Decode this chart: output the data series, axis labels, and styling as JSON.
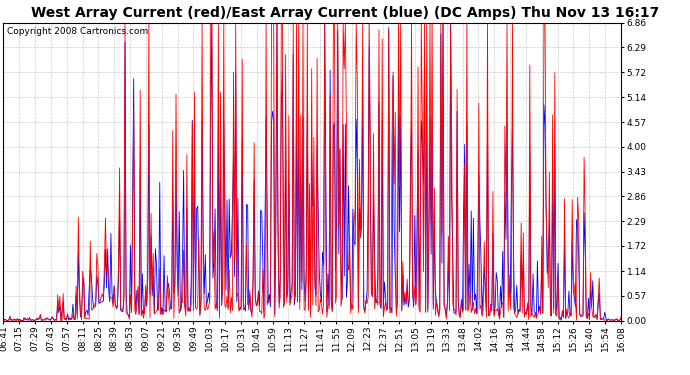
{
  "title": "West Array Current (red)/East Array Current (blue) (DC Amps) Thu Nov 13 16:17",
  "copyright": "Copyright 2008 Cartronics.com",
  "yticks": [
    0.0,
    0.57,
    1.14,
    1.72,
    2.29,
    2.86,
    3.43,
    4.0,
    4.57,
    5.14,
    5.72,
    6.29,
    6.86
  ],
  "ylim": [
    0.0,
    6.86
  ],
  "xtick_labels": [
    "06:41",
    "07:15",
    "07:29",
    "07:43",
    "07:57",
    "08:11",
    "08:25",
    "08:39",
    "08:53",
    "09:07",
    "09:21",
    "09:35",
    "09:49",
    "10:03",
    "10:17",
    "10:31",
    "10:45",
    "10:59",
    "11:13",
    "11:27",
    "11:41",
    "11:55",
    "12:09",
    "12:23",
    "12:37",
    "12:51",
    "13:05",
    "13:19",
    "13:33",
    "13:48",
    "14:02",
    "14:16",
    "14:30",
    "14:44",
    "14:58",
    "15:12",
    "15:26",
    "15:40",
    "15:54",
    "16:08"
  ],
  "bg_color": "#ffffff",
  "plot_bg_color": "#ffffff",
  "grid_color": "#bbbbbb",
  "red_color": "#ff0000",
  "blue_color": "#0000ff",
  "title_fontsize": 10,
  "copyright_fontsize": 6.5,
  "tick_fontsize": 6.5
}
